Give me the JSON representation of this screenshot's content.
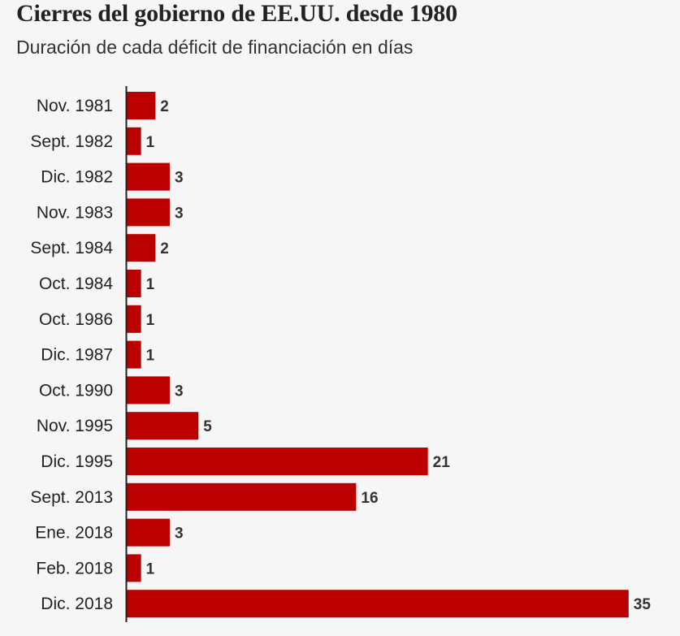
{
  "title": "Cierres del gobierno de EE.UU. desde 1980",
  "subtitle": "Duración de cada déficit de financiación en días",
  "colors": {
    "bar": "#bb0000",
    "axis": "#222222",
    "background": "#f6f6f6"
  },
  "chart_data": {
    "type": "bar",
    "orientation": "horizontal",
    "title": "Cierres del gobierno de EE.UU. desde 1980",
    "subtitle": "Duración de cada déficit de financiación en días",
    "categories": [
      "Nov. 1981",
      "Sept. 1982",
      "Dic. 1982",
      "Nov. 1983",
      "Sept. 1984",
      "Oct. 1984",
      "Oct. 1986",
      "Dic. 1987",
      "Oct. 1990",
      "Nov. 1995",
      "Dic. 1995",
      "Sept. 2013",
      "Ene. 2018",
      "Feb. 2018",
      "Dic. 2018"
    ],
    "values": [
      2,
      1,
      3,
      3,
      2,
      1,
      1,
      1,
      3,
      5,
      21,
      16,
      3,
      1,
      35
    ],
    "xlim": [
      0,
      35
    ],
    "grid": false,
    "legend": "none"
  }
}
